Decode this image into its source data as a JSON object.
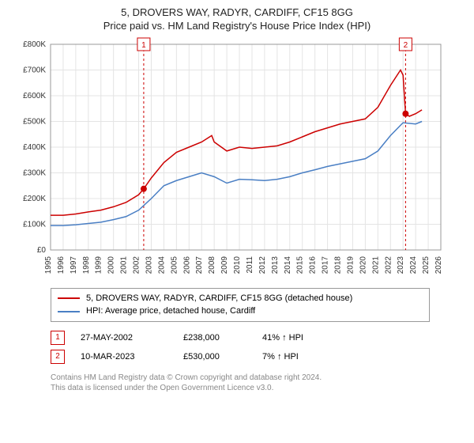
{
  "header": {
    "title": "5, DROVERS WAY, RADYR, CARDIFF, CF15 8GG",
    "subtitle": "Price paid vs. HM Land Registry's House Price Index (HPI)"
  },
  "chart": {
    "type": "line",
    "background_color": "#ffffff",
    "plot_border_color": "#999999",
    "grid_color": "#e4e4e4",
    "x": {
      "min": 1995,
      "max": 2026,
      "ticks": [
        1995,
        1996,
        1997,
        1998,
        1999,
        2000,
        2001,
        2002,
        2003,
        2004,
        2005,
        2006,
        2007,
        2008,
        2009,
        2010,
        2011,
        2012,
        2013,
        2014,
        2015,
        2016,
        2017,
        2018,
        2019,
        2020,
        2021,
        2022,
        2023,
        2024,
        2025,
        2026
      ]
    },
    "y": {
      "min": 0,
      "max": 800000,
      "ticks": [
        0,
        100000,
        200000,
        300000,
        400000,
        500000,
        600000,
        700000,
        800000
      ],
      "tick_labels": [
        "£0",
        "£100K",
        "£200K",
        "£300K",
        "£400K",
        "£500K",
        "£600K",
        "£700K",
        "£800K"
      ]
    },
    "series": [
      {
        "name": "5, DROVERS WAY, RADYR, CARDIFF, CF15 8GG (detached house)",
        "color": "#cc0000",
        "width": 1.5,
        "points": [
          [
            1995,
            135000
          ],
          [
            1996,
            135000
          ],
          [
            1997,
            140000
          ],
          [
            1998,
            148000
          ],
          [
            1999,
            155000
          ],
          [
            2000,
            168000
          ],
          [
            2001,
            185000
          ],
          [
            2002,
            215000
          ],
          [
            2002.4,
            238000
          ],
          [
            2003,
            280000
          ],
          [
            2004,
            340000
          ],
          [
            2005,
            380000
          ],
          [
            2006,
            400000
          ],
          [
            2007,
            420000
          ],
          [
            2007.8,
            445000
          ],
          [
            2008,
            420000
          ],
          [
            2009,
            385000
          ],
          [
            2010,
            400000
          ],
          [
            2011,
            395000
          ],
          [
            2012,
            400000
          ],
          [
            2013,
            405000
          ],
          [
            2014,
            420000
          ],
          [
            2015,
            440000
          ],
          [
            2016,
            460000
          ],
          [
            2017,
            475000
          ],
          [
            2018,
            490000
          ],
          [
            2019,
            500000
          ],
          [
            2020,
            510000
          ],
          [
            2021,
            555000
          ],
          [
            2022,
            640000
          ],
          [
            2022.8,
            700000
          ],
          [
            2023,
            680000
          ],
          [
            2023.2,
            530000
          ],
          [
            2023.5,
            520000
          ],
          [
            2024,
            530000
          ],
          [
            2024.5,
            545000
          ]
        ]
      },
      {
        "name": "HPI: Average price, detached house, Cardiff",
        "color": "#4a7fc4",
        "width": 1.5,
        "points": [
          [
            1995,
            95000
          ],
          [
            1996,
            95000
          ],
          [
            1997,
            98000
          ],
          [
            1998,
            103000
          ],
          [
            1999,
            108000
          ],
          [
            2000,
            118000
          ],
          [
            2001,
            130000
          ],
          [
            2002,
            155000
          ],
          [
            2003,
            200000
          ],
          [
            2004,
            250000
          ],
          [
            2005,
            270000
          ],
          [
            2006,
            285000
          ],
          [
            2007,
            300000
          ],
          [
            2008,
            285000
          ],
          [
            2009,
            260000
          ],
          [
            2010,
            275000
          ],
          [
            2011,
            273000
          ],
          [
            2012,
            270000
          ],
          [
            2013,
            275000
          ],
          [
            2014,
            285000
          ],
          [
            2015,
            300000
          ],
          [
            2016,
            312000
          ],
          [
            2017,
            325000
          ],
          [
            2018,
            335000
          ],
          [
            2019,
            345000
          ],
          [
            2020,
            355000
          ],
          [
            2021,
            385000
          ],
          [
            2022,
            445000
          ],
          [
            2023,
            495000
          ],
          [
            2024,
            490000
          ],
          [
            2024.5,
            500000
          ]
        ]
      }
    ],
    "vlines": [
      {
        "x": 2002.4,
        "color": "#cc0000",
        "dash": "3,3",
        "badge": "1",
        "badge_color": "#cc0000"
      },
      {
        "x": 2023.2,
        "color": "#cc0000",
        "dash": "3,3",
        "badge": "2",
        "badge_color": "#cc0000"
      }
    ],
    "markers": [
      {
        "x": 2002.4,
        "y": 238000,
        "color": "#cc0000",
        "r": 4
      },
      {
        "x": 2023.2,
        "y": 530000,
        "color": "#cc0000",
        "r": 4
      }
    ]
  },
  "legend": {
    "items": [
      {
        "label": "5, DROVERS WAY, RADYR, CARDIFF, CF15 8GG (detached house)",
        "color": "#cc0000"
      },
      {
        "label": "HPI: Average price, detached house, Cardiff",
        "color": "#4a7fc4"
      }
    ]
  },
  "marker_table": {
    "rows": [
      {
        "badge": "1",
        "badge_color": "#cc0000",
        "date": "27-MAY-2002",
        "price": "£238,000",
        "pct": "41% ↑ HPI"
      },
      {
        "badge": "2",
        "badge_color": "#cc0000",
        "date": "10-MAR-2023",
        "price": "£530,000",
        "pct": "7% ↑ HPI"
      }
    ]
  },
  "footer": {
    "line1": "Contains HM Land Registry data © Crown copyright and database right 2024.",
    "line2": "This data is licensed under the Open Government Licence v3.0."
  }
}
